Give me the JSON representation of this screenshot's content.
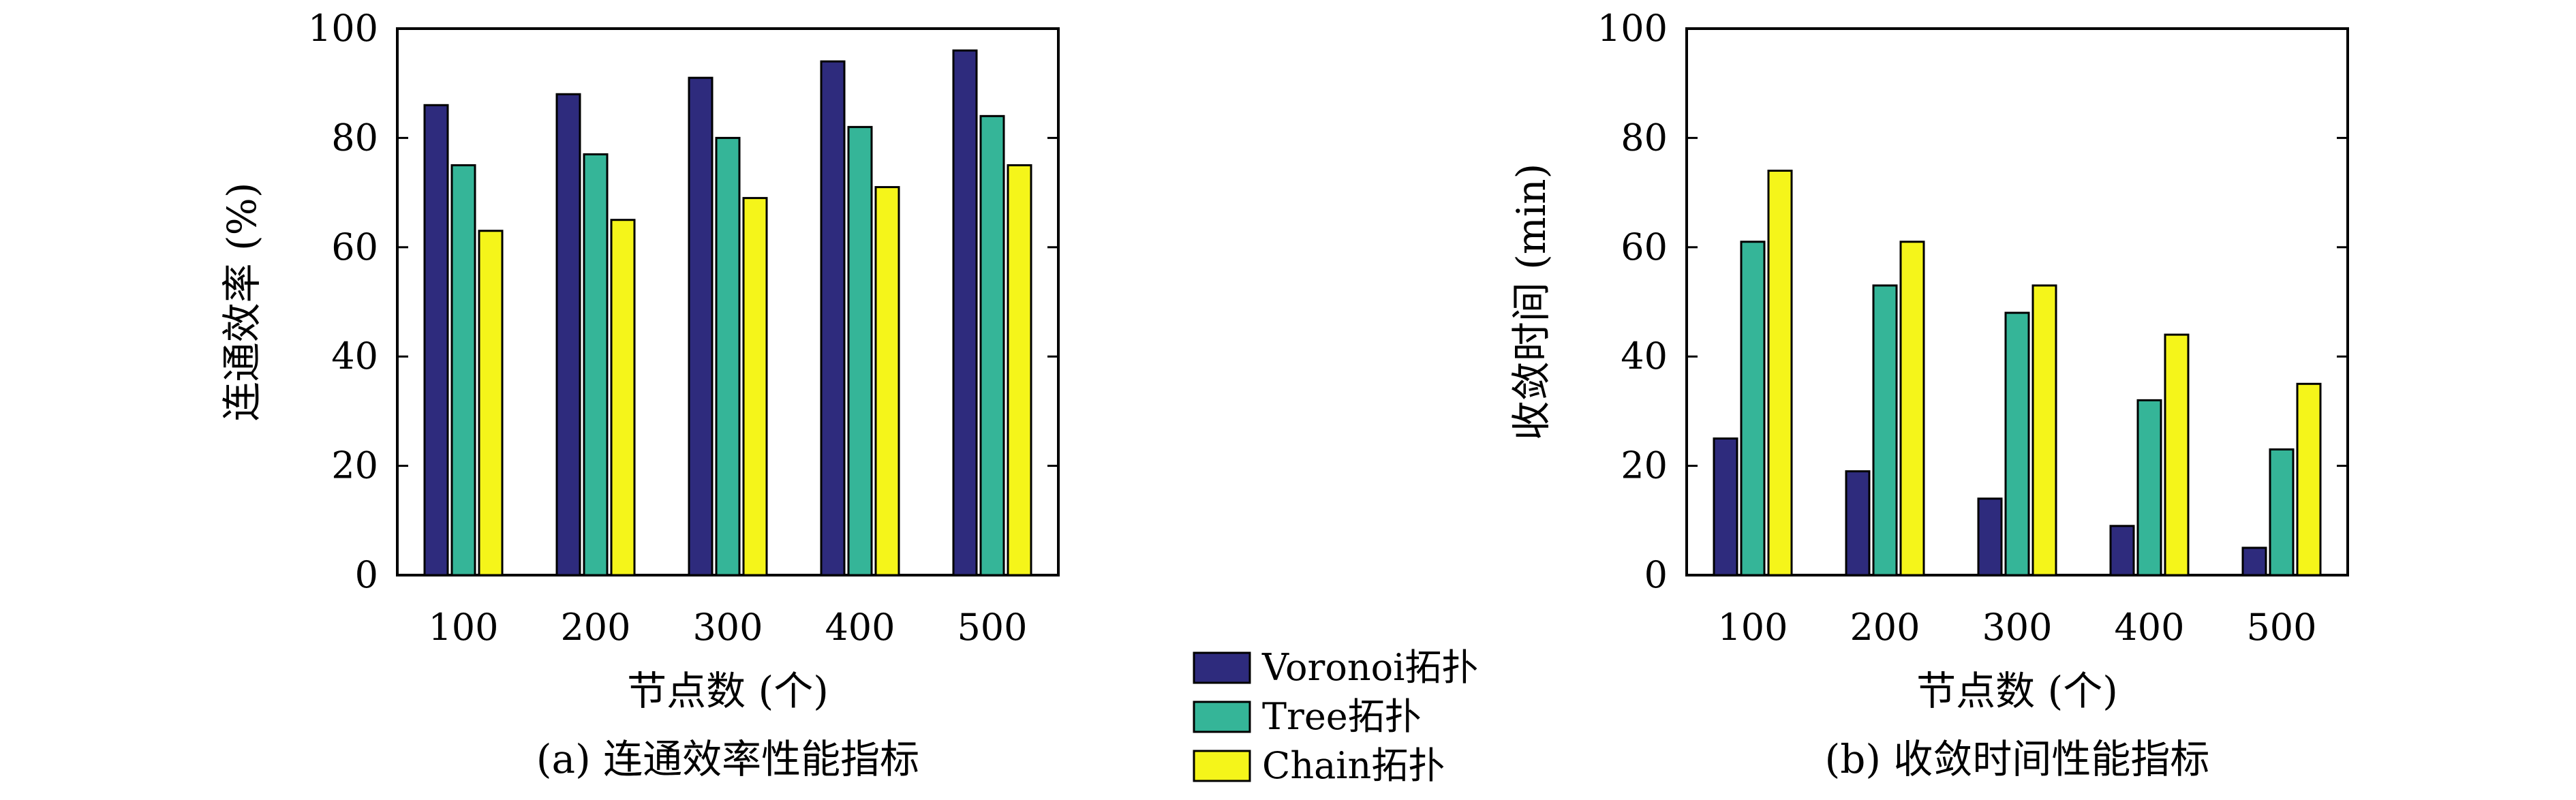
{
  "legend": [
    {
      "label": "Voronoi拓扑",
      "color": "#2e2b7d"
    },
    {
      "label": "Tree拓扑",
      "color": "#35b598"
    },
    {
      "label": "Chain拓扑",
      "color": "#f5f51a"
    }
  ],
  "chart_data": [
    {
      "type": "bar",
      "caption": "(a) 连通效率性能指标",
      "xlabel": "节点数 (个)",
      "ylabel": "连通效率 (%)",
      "ylim": [
        0,
        100
      ],
      "yticks": [
        0,
        20,
        40,
        60,
        80,
        100
      ],
      "categories": [
        "100",
        "200",
        "300",
        "400",
        "500"
      ],
      "series": [
        {
          "name": "Voronoi拓扑",
          "values": [
            86,
            88,
            91,
            94,
            96
          ]
        },
        {
          "name": "Tree拓扑",
          "values": [
            75,
            77,
            80,
            82,
            84
          ]
        },
        {
          "name": "Chain拓扑",
          "values": [
            63,
            65,
            69,
            71,
            75
          ]
        }
      ]
    },
    {
      "type": "bar",
      "caption": "(b) 收敛时间性能指标",
      "xlabel": "节点数 (个)",
      "ylabel": "收敛时间 (min)",
      "ylim": [
        0,
        100
      ],
      "yticks": [
        0,
        20,
        40,
        60,
        80,
        100
      ],
      "categories": [
        "100",
        "200",
        "300",
        "400",
        "500"
      ],
      "series": [
        {
          "name": "Voronoi拓扑",
          "values": [
            25,
            19,
            14,
            9,
            5
          ]
        },
        {
          "name": "Tree拓扑",
          "values": [
            61,
            53,
            48,
            32,
            23
          ]
        },
        {
          "name": "Chain拓扑",
          "values": [
            74,
            61,
            53,
            44,
            35
          ]
        }
      ]
    }
  ]
}
